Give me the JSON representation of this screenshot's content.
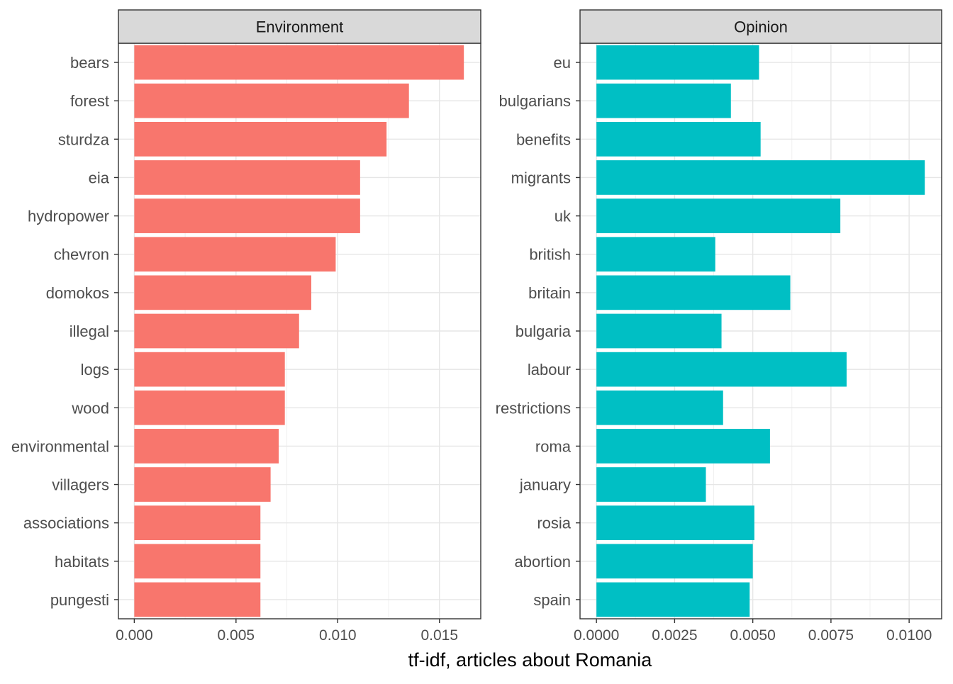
{
  "chart_data": {
    "type": "bar",
    "orientation": "horizontal",
    "xlabel": "tf-idf, articles about Romania",
    "grid": true,
    "colors": {
      "Environment": "#F8766D",
      "Opinion": "#00BFC4"
    },
    "panels": [
      {
        "title": "Environment",
        "xlim": [
          -0.00078,
          0.01703
        ],
        "xticks": [
          0,
          0.005,
          0.01,
          0.015
        ],
        "xtick_labels": [
          "0.000",
          "0.005",
          "0.010",
          "0.015"
        ],
        "categories": [
          "bears",
          "forest",
          "sturdza",
          "eia",
          "hydropower",
          "chevron",
          "domokos",
          "illegal",
          "logs",
          "wood",
          "environmental",
          "villagers",
          "associations",
          "habitats",
          "pungesti"
        ],
        "values": [
          0.0162,
          0.0135,
          0.0124,
          0.0111,
          0.0111,
          0.0099,
          0.0087,
          0.0081,
          0.0074,
          0.0074,
          0.0071,
          0.0067,
          0.0062,
          0.0062,
          0.0062
        ]
      },
      {
        "title": "Opinion",
        "xlim": [
          -0.000525,
          0.01104
        ],
        "xticks": [
          0,
          0.0025,
          0.005,
          0.0075,
          0.01
        ],
        "xtick_labels": [
          "0.0000",
          "0.0025",
          "0.0050",
          "0.0075",
          "0.0100"
        ],
        "categories": [
          "eu",
          "bulgarians",
          "benefits",
          "migrants",
          "uk",
          "british",
          "britain",
          "bulgaria",
          "labour",
          "restrictions",
          "roma",
          "january",
          "rosia",
          "abortion",
          "spain"
        ],
        "values": [
          0.0052,
          0.0043,
          0.00525,
          0.0105,
          0.0078,
          0.0038,
          0.0062,
          0.004,
          0.008,
          0.00405,
          0.00555,
          0.0035,
          0.00505,
          0.005,
          0.0049
        ]
      }
    ]
  }
}
